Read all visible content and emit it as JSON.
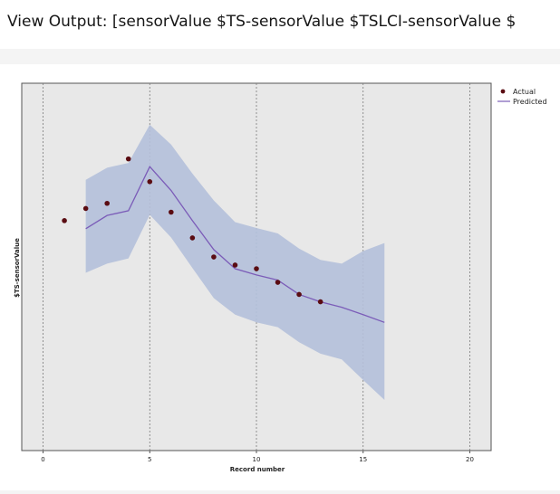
{
  "window": {
    "title": "View Output: [sensorValue $TS-sensorValue $TSLCI-sensorValue $"
  },
  "chart_data": {
    "type": "line",
    "xlabel": "Record number",
    "ylabel": "$TS-sensorValue",
    "xlim": [
      -1,
      21
    ],
    "ylim": [
      0,
      1
    ],
    "x_ticks": [
      0,
      5,
      10,
      15,
      20
    ],
    "grid": "vertical dashed at x ticks",
    "legend_position": "top-right, outside plot",
    "series": [
      {
        "name": "Actual",
        "kind": "scatter",
        "color": "#5a0c12",
        "x": [
          1,
          2,
          3,
          4,
          5,
          6,
          7,
          8,
          9,
          10,
          11,
          12,
          13
        ],
        "y": [
          0.626,
          0.659,
          0.673,
          0.794,
          0.732,
          0.649,
          0.579,
          0.527,
          0.505,
          0.495,
          0.458,
          0.425,
          0.405
        ]
      },
      {
        "name": "Predicted",
        "kind": "line",
        "color": "#7b5cb8",
        "x": [
          2,
          3,
          4,
          5,
          6,
          7,
          8,
          9,
          10,
          11,
          12,
          13,
          14,
          15,
          16
        ],
        "y": [
          0.604,
          0.64,
          0.653,
          0.773,
          0.708,
          0.626,
          0.547,
          0.495,
          0.478,
          0.464,
          0.425,
          0.405,
          0.39,
          0.37,
          0.349
        ]
      },
      {
        "kind": "confidence-band",
        "color": "#b4c0da",
        "x": [
          2,
          3,
          4,
          5,
          6,
          7,
          8,
          9,
          10,
          11,
          12,
          13,
          14,
          15,
          16
        ],
        "upper": [
          0.737,
          0.77,
          0.783,
          0.887,
          0.833,
          0.754,
          0.681,
          0.622,
          0.606,
          0.591,
          0.55,
          0.519,
          0.509,
          0.543,
          0.565
        ],
        "lower": [
          0.484,
          0.509,
          0.523,
          0.642,
          0.58,
          0.497,
          0.415,
          0.37,
          0.349,
          0.336,
          0.295,
          0.264,
          0.248,
          0.192,
          0.138
        ]
      }
    ]
  }
}
